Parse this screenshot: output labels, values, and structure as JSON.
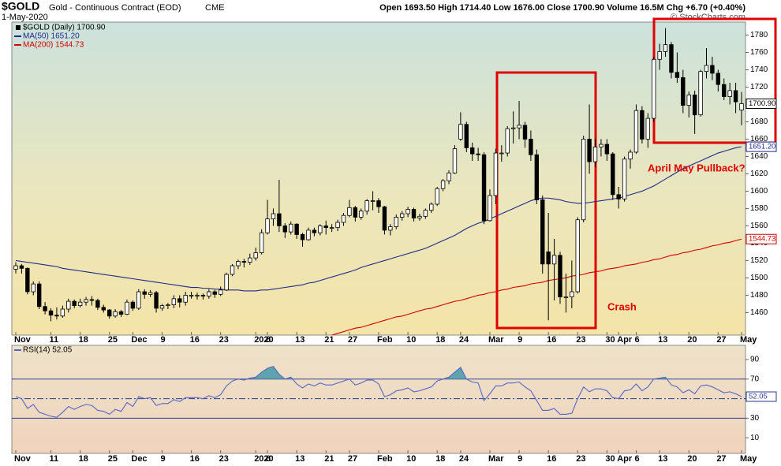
{
  "header": {
    "symbol": "$GOLD",
    "description": "Gold - Continuous Contract (EOD)",
    "exchange": "CME",
    "date": "1-May-2020",
    "quote": "Open 1693.50  High 1714.40  Low 1676.00  Close 1700.90  Volume 16.5M  Chg +6.70 (+0.40%)",
    "credit": "© StockCharts.com"
  },
  "chart_data": [
    {
      "type": "candlestick",
      "name": "$GOLD (Daily) 1700.90",
      "last_label": "1700.90",
      "colors": {
        "up": "#ffffff",
        "down": "#000000"
      },
      "categories": [
        "Nov",
        null,
        null,
        null,
        null,
        null,
        "11",
        null,
        null,
        null,
        null,
        "18",
        null,
        null,
        null,
        null,
        "25",
        null,
        null,
        null,
        "Dec",
        null,
        null,
        null,
        null,
        "9",
        null,
        null,
        null,
        null,
        "16",
        null,
        null,
        null,
        null,
        "23",
        null,
        null,
        null,
        null,
        null,
        "2020",
        null,
        "6",
        null,
        null,
        null,
        null,
        "13",
        null,
        null,
        null,
        null,
        "21",
        null,
        null,
        null,
        "27",
        null,
        null,
        null,
        null,
        "Feb",
        null,
        null,
        null,
        null,
        "10",
        null,
        null,
        null,
        null,
        "18",
        null,
        null,
        null,
        "24",
        null,
        null,
        null,
        null,
        "Mar",
        null,
        null,
        null,
        null,
        "9",
        null,
        null,
        null,
        null,
        "16",
        null,
        null,
        null,
        null,
        "23",
        null,
        null,
        null,
        null,
        "30",
        null,
        "Apr",
        null,
        null,
        "6",
        null,
        null,
        null,
        "13",
        null,
        null,
        null,
        null,
        "20",
        null,
        null,
        null,
        null,
        "27",
        null,
        null,
        null,
        "May"
      ],
      "ohlc": [
        [
          1510,
          1518,
          1505,
          1514
        ],
        [
          1514,
          1516,
          1505,
          1511
        ],
        [
          1511,
          1512,
          1481,
          1484
        ],
        [
          1484,
          1496,
          1480,
          1493
        ],
        [
          1493,
          1496,
          1464,
          1467
        ],
        [
          1467,
          1472,
          1458,
          1462
        ],
        [
          1462,
          1465,
          1450,
          1457
        ],
        [
          1457,
          1466,
          1452,
          1456
        ],
        [
          1456,
          1468,
          1454,
          1464
        ],
        [
          1464,
          1476,
          1460,
          1473
        ],
        [
          1473,
          1475,
          1465,
          1468
        ],
        [
          1468,
          1476,
          1466,
          1472
        ],
        [
          1472,
          1478,
          1468,
          1475
        ],
        [
          1475,
          1479,
          1468,
          1474
        ],
        [
          1474,
          1476,
          1463,
          1466
        ],
        [
          1466,
          1469,
          1460,
          1463
        ],
        [
          1463,
          1464,
          1453,
          1456
        ],
        [
          1456,
          1464,
          1454,
          1461
        ],
        [
          1461,
          1463,
          1455,
          1458
        ],
        [
          1458,
          1475,
          1457,
          1472
        ],
        [
          1472,
          1474,
          1462,
          1465
        ],
        [
          1465,
          1487,
          1463,
          1484
        ],
        [
          1484,
          1487,
          1476,
          1481
        ],
        [
          1481,
          1486,
          1478,
          1483
        ],
        [
          1483,
          1485,
          1460,
          1465
        ],
        [
          1465,
          1470,
          1462,
          1468
        ],
        [
          1468,
          1471,
          1464,
          1469
        ],
        [
          1469,
          1480,
          1465,
          1476
        ],
        [
          1476,
          1480,
          1466,
          1472
        ],
        [
          1472,
          1484,
          1468,
          1480
        ],
        [
          1480,
          1484,
          1476,
          1480
        ],
        [
          1480,
          1483,
          1475,
          1480
        ],
        [
          1480,
          1482,
          1475,
          1479
        ],
        [
          1479,
          1487,
          1476,
          1484
        ],
        [
          1484,
          1486,
          1477,
          1481
        ],
        [
          1481,
          1490,
          1479,
          1486
        ],
        [
          1486,
          1506,
          1485,
          1504
        ],
        [
          1504,
          1516,
          1502,
          1514
        ],
        [
          1514,
          1521,
          1510,
          1519
        ],
        [
          1519,
          1522,
          1512,
          1518
        ],
        [
          1518,
          1528,
          1515,
          1523
        ],
        [
          1523,
          1535,
          1520,
          1529
        ],
        [
          1529,
          1556,
          1527,
          1552
        ],
        [
          1552,
          1590,
          1550,
          1568
        ],
        [
          1568,
          1580,
          1560,
          1574
        ],
        [
          1574,
          1613,
          1553,
          1560
        ],
        [
          1560,
          1563,
          1546,
          1553
        ],
        [
          1553,
          1565,
          1550,
          1562
        ],
        [
          1562,
          1563,
          1545,
          1550
        ],
        [
          1550,
          1552,
          1536,
          1544
        ],
        [
          1544,
          1558,
          1543,
          1555
        ],
        [
          1555,
          1558,
          1548,
          1552
        ],
        [
          1552,
          1562,
          1549,
          1560
        ],
        [
          1560,
          1566,
          1550,
          1558
        ],
        [
          1558,
          1562,
          1553,
          1558
        ],
        [
          1558,
          1567,
          1554,
          1564
        ],
        [
          1564,
          1575,
          1560,
          1572
        ],
        [
          1572,
          1590,
          1570,
          1581
        ],
        [
          1581,
          1583,
          1565,
          1570
        ],
        [
          1570,
          1580,
          1567,
          1577
        ],
        [
          1577,
          1591,
          1573,
          1589
        ],
        [
          1589,
          1600,
          1578,
          1589
        ],
        [
          1589,
          1592,
          1575,
          1582
        ],
        [
          1582,
          1583,
          1550,
          1555
        ],
        [
          1555,
          1562,
          1549,
          1559
        ],
        [
          1559,
          1573,
          1556,
          1570
        ],
        [
          1570,
          1577,
          1566,
          1574
        ],
        [
          1574,
          1582,
          1570,
          1579
        ],
        [
          1579,
          1581,
          1565,
          1569
        ],
        [
          1569,
          1574,
          1566,
          1571
        ],
        [
          1571,
          1580,
          1568,
          1578
        ],
        [
          1578,
          1587,
          1575,
          1585
        ],
        [
          1585,
          1605,
          1583,
          1603
        ],
        [
          1603,
          1614,
          1600,
          1612
        ],
        [
          1612,
          1624,
          1608,
          1621
        ],
        [
          1621,
          1653,
          1620,
          1649
        ],
        [
          1660,
          1691,
          1658,
          1677
        ],
        [
          1677,
          1680,
          1645,
          1650
        ],
        [
          1650,
          1656,
          1635,
          1643
        ],
        [
          1643,
          1650,
          1635,
          1642
        ],
        [
          1642,
          1645,
          1562,
          1566
        ],
        [
          1566,
          1602,
          1565,
          1595
        ],
        [
          1595,
          1649,
          1585,
          1644
        ],
        [
          1644,
          1653,
          1634,
          1644
        ],
        [
          1644,
          1675,
          1640,
          1672
        ],
        [
          1672,
          1692,
          1655,
          1673
        ],
        [
          1673,
          1704,
          1660,
          1676
        ],
        [
          1676,
          1680,
          1650,
          1660
        ],
        [
          1660,
          1670,
          1635,
          1642
        ],
        [
          1642,
          1648,
          1585,
          1590
        ],
        [
          1590,
          1595,
          1505,
          1516
        ],
        [
          1530,
          1575,
          1451,
          1516
        ],
        [
          1516,
          1545,
          1474,
          1526
        ],
        [
          1526,
          1530,
          1470,
          1478
        ],
        [
          1478,
          1505,
          1460,
          1478
        ],
        [
          1478,
          1520,
          1465,
          1484
        ],
        [
          1484,
          1570,
          1482,
          1567
        ],
        [
          1567,
          1664,
          1564,
          1660
        ],
        [
          1660,
          1700,
          1620,
          1634
        ],
        [
          1634,
          1660,
          1628,
          1651
        ],
        [
          1651,
          1660,
          1640,
          1654
        ],
        [
          1654,
          1660,
          1635,
          1643
        ],
        [
          1643,
          1645,
          1590,
          1596
        ],
        [
          1596,
          1605,
          1580,
          1591
        ],
        [
          1591,
          1640,
          1588,
          1637
        ],
        [
          1637,
          1648,
          1626,
          1645
        ],
        [
          1645,
          1700,
          1643,
          1693
        ],
        [
          1693,
          1698,
          1655,
          1660
        ],
        [
          1660,
          1690,
          1650,
          1684
        ],
        [
          1684,
          1755,
          1680,
          1752
        ],
        [
          1752,
          1770,
          1740,
          1761
        ],
        [
          1761,
          1788,
          1755,
          1769
        ],
        [
          1769,
          1772,
          1730,
          1737
        ],
        [
          1737,
          1760,
          1725,
          1731
        ],
        [
          1731,
          1740,
          1690,
          1699
        ],
        [
          1699,
          1715,
          1685,
          1711
        ],
        [
          1711,
          1716,
          1666,
          1688
        ],
        [
          1688,
          1740,
          1686,
          1738
        ],
        [
          1738,
          1765,
          1730,
          1745
        ],
        [
          1745,
          1755,
          1728,
          1736
        ],
        [
          1736,
          1740,
          1715,
          1723
        ],
        [
          1723,
          1730,
          1705,
          1709
        ],
        [
          1709,
          1725,
          1700,
          1716
        ],
        [
          1716,
          1725,
          1690,
          1703
        ],
        [
          1693.5,
          1714.4,
          1676,
          1700.9
        ]
      ],
      "series": [
        {
          "name": "MA(50) 1651.20",
          "color": "#1c2a8c",
          "last_label": "1651.20",
          "values": [
            1520,
            1519,
            1518,
            1517,
            1516,
            1515,
            1514,
            1513,
            1511,
            1510,
            1509,
            1508,
            1507,
            1506,
            1505,
            1504,
            1503,
            1502,
            1501,
            1500,
            1499,
            1498,
            1497,
            1496,
            1495,
            1494,
            1493,
            1492,
            1491,
            1490,
            1489,
            1489,
            1488,
            1488,
            1487,
            1487,
            1486,
            1486,
            1486,
            1485,
            1485,
            1485,
            1486,
            1486,
            1487,
            1488,
            1489,
            1490,
            1491,
            1492,
            1494,
            1495,
            1497,
            1499,
            1501,
            1503,
            1505,
            1507,
            1509,
            1512,
            1514,
            1516,
            1518,
            1520,
            1522,
            1524,
            1526,
            1528,
            1530,
            1532,
            1534,
            1537,
            1540,
            1543,
            1546,
            1549,
            1553,
            1557,
            1560,
            1563,
            1565,
            1568,
            1571,
            1574,
            1577,
            1580,
            1583,
            1586,
            1589,
            1591,
            1592,
            1592,
            1591,
            1590,
            1588,
            1587,
            1586,
            1586,
            1587,
            1588,
            1589,
            1590,
            1591,
            1592,
            1594,
            1596,
            1598,
            1600,
            1603,
            1606,
            1610,
            1614,
            1618,
            1622,
            1626,
            1629,
            1632,
            1635,
            1638,
            1641,
            1644,
            1646,
            1648,
            1650,
            1651.2
          ]
        },
        {
          "name": "MA(200) 1544.73",
          "color": "#d40000",
          "last_label": "1544.73",
          "values": [
            null,
            null,
            null,
            null,
            null,
            null,
            null,
            null,
            null,
            null,
            null,
            null,
            null,
            null,
            null,
            null,
            null,
            null,
            null,
            null,
            null,
            null,
            null,
            null,
            null,
            null,
            null,
            null,
            null,
            null,
            null,
            null,
            null,
            null,
            null,
            null,
            null,
            null,
            null,
            null,
            null,
            null,
            null,
            null,
            null,
            null,
            null,
            null,
            null,
            null,
            null,
            null,
            null,
            null,
            1434,
            1436,
            1438,
            1440,
            1442,
            1443,
            1445,
            1447,
            1449,
            1451,
            1453,
            1455,
            1456,
            1458,
            1460,
            1462,
            1464,
            1465,
            1467,
            1469,
            1471,
            1473,
            1474,
            1476,
            1478,
            1480,
            1481,
            1483,
            1484,
            1486,
            1487,
            1489,
            1490,
            1491,
            1493,
            1494,
            1495,
            1497,
            1498,
            1499,
            1500,
            1502,
            1503,
            1504,
            1506,
            1507,
            1508,
            1510,
            1511,
            1512,
            1514,
            1515,
            1516,
            1518,
            1519,
            1521,
            1522,
            1524,
            1526,
            1527,
            1529,
            1530,
            1532,
            1533,
            1535,
            1537,
            1538,
            1540,
            1541,
            1543,
            1544.73
          ]
        }
      ],
      "ylim": [
        1434,
        1795
      ],
      "yticks": [
        1460,
        1480,
        1500,
        1520,
        1540,
        1560,
        1580,
        1600,
        1620,
        1640,
        1660,
        1680,
        1700,
        1720,
        1740,
        1760,
        1780
      ],
      "annotations": [
        {
          "text": "April May Pullback?"
        },
        {
          "text": "Crash"
        }
      ]
    },
    {
      "type": "line",
      "name": "RSI(14) 52.05",
      "color": "#5566c8",
      "fill_color": "#5fa3ae",
      "last_label": "52.05",
      "values": [
        52,
        50,
        40,
        44,
        36,
        34,
        32,
        31,
        36,
        42,
        39,
        42,
        44,
        43,
        38,
        37,
        34,
        39,
        37,
        46,
        42,
        52,
        50,
        51,
        43,
        45,
        45,
        49,
        47,
        51,
        51,
        51,
        50,
        53,
        51,
        54,
        63,
        68,
        70,
        69,
        71,
        72,
        77,
        81,
        83,
        75,
        70,
        72,
        65,
        61,
        65,
        63,
        66,
        64,
        64,
        66,
        68,
        70,
        64,
        66,
        69,
        69,
        65,
        52,
        54,
        58,
        59,
        61,
        57,
        58,
        60,
        62,
        68,
        70,
        72,
        77,
        82,
        70,
        67,
        66,
        48,
        55,
        63,
        63,
        66,
        66,
        67,
        62,
        58,
        48,
        38,
        38,
        40,
        34,
        34,
        35,
        50,
        62,
        57,
        60,
        60,
        58,
        51,
        50,
        58,
        59,
        65,
        58,
        62,
        70,
        71,
        72,
        64,
        62,
        56,
        59,
        55,
        63,
        64,
        62,
        59,
        56,
        57,
        55,
        52.05
      ],
      "ylim": [
        -6,
        104.5
      ],
      "yticks": [
        10,
        30,
        50,
        70,
        90
      ],
      "levels": [
        30,
        50,
        70
      ]
    }
  ]
}
